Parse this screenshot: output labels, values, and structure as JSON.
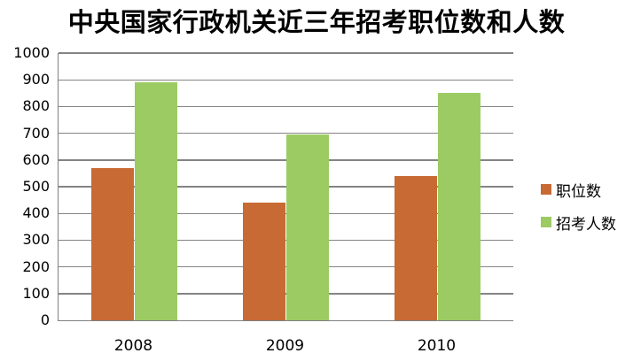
{
  "chart_data": {
    "type": "bar",
    "title": "中央国家行政机关近三年招考职位数和人数",
    "categories": [
      "2008",
      "2009",
      "2010"
    ],
    "series": [
      {
        "id": "positions",
        "name": "职位数",
        "color": "#C76A34",
        "values": [
          570,
          440,
          540
        ]
      },
      {
        "id": "recruits",
        "name": "招考人数",
        "color": "#9CCB63",
        "values": [
          890,
          695,
          850
        ]
      }
    ],
    "ylim": [
      0,
      1000
    ],
    "y_ticks": [
      0,
      100,
      200,
      300,
      400,
      500,
      600,
      700,
      800,
      900,
      1000
    ],
    "xlabel": "",
    "ylabel": "",
    "grid": "horizontal",
    "legend_position": "right",
    "axis_color": "#808080",
    "gridline_color": "#848484",
    "background": "#FFFFFF"
  }
}
